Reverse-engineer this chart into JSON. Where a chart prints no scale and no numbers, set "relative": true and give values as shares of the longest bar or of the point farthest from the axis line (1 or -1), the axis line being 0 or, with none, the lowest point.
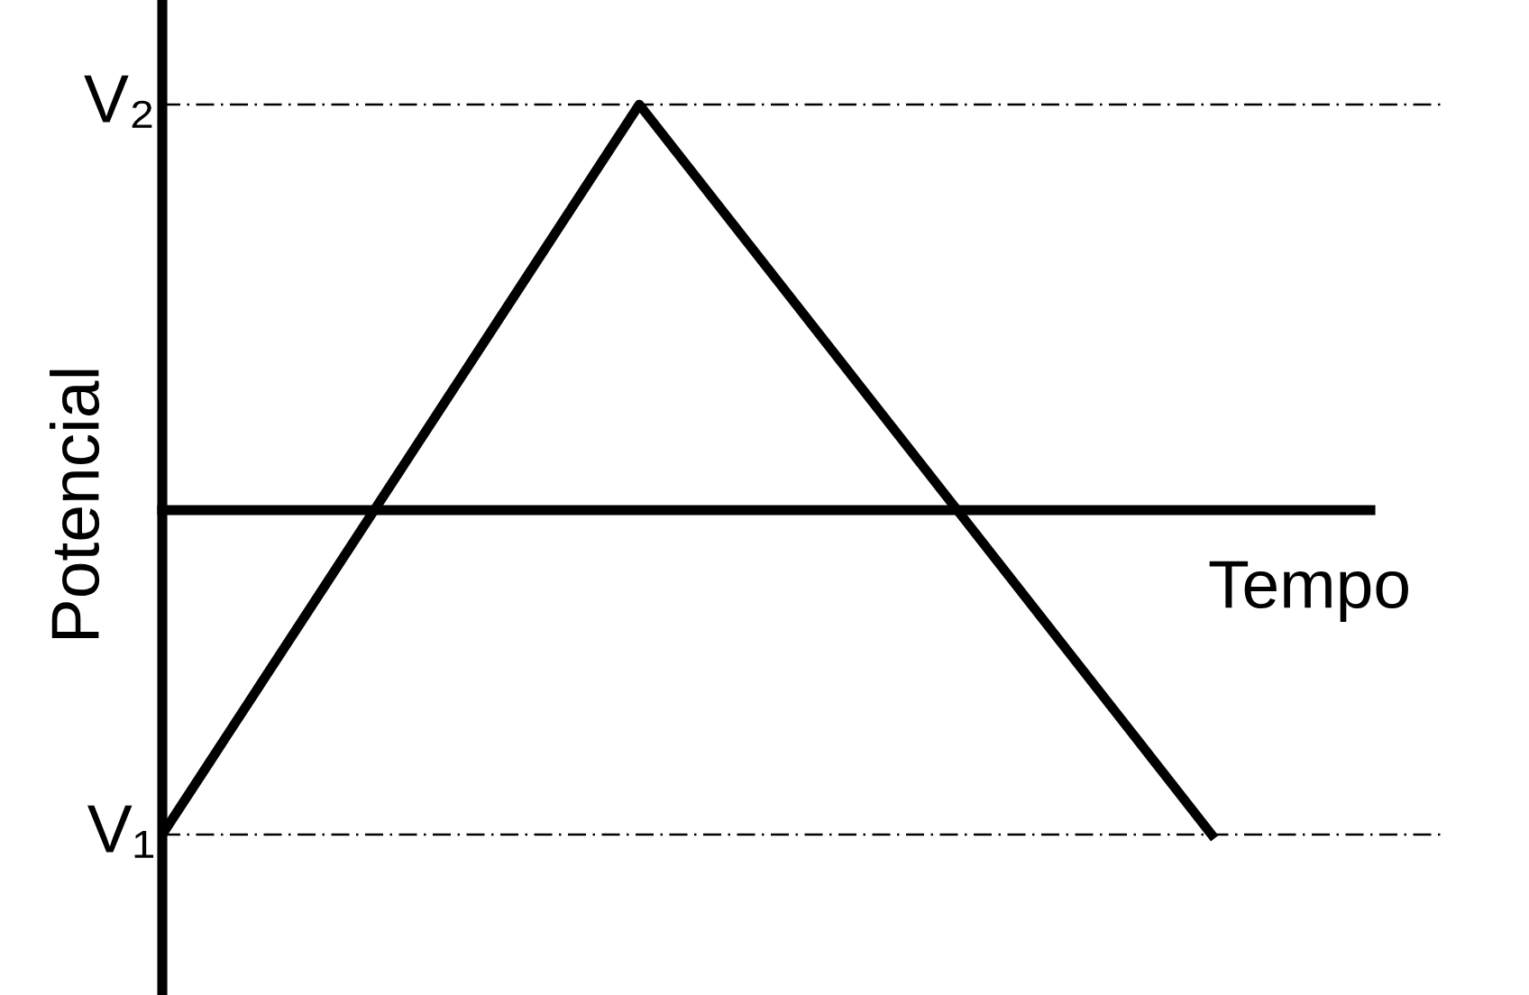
{
  "chart_data": {
    "type": "line",
    "relative": true,
    "xlabel": "Tempo",
    "ylabel": "Potencial",
    "categories": [
      null,
      null,
      null,
      null,
      null,
      null,
      null,
      null,
      null,
      null,
      null,
      null,
      null,
      null,
      null,
      null,
      null,
      null,
      null,
      null,
      null,
      null,
      null
    ],
    "series": [
      {
        "color": "#000000",
        "values": [
          -0.8,
          -0.62,
          -0.44,
          -0.26,
          -0.08,
          0.1,
          0.28,
          0.46,
          0.64,
          0.82,
          1,
          0.85,
          0.7,
          0.55,
          0.4,
          0.25,
          0.1,
          -0.05,
          -0.2,
          -0.35,
          -0.5,
          -0.65,
          -0.8
        ]
      }
    ],
    "ref_lines": [
      {
        "axis": "y",
        "value": 1,
        "label": "V₂",
        "line_style": "dashdot",
        "color": "#000000"
      },
      {
        "axis": "y",
        "value": -0.8,
        "label": "V₁",
        "line_style": "dashdot",
        "color": "#000000"
      }
    ],
    "marker": "none",
    "line_style": "solid",
    "legend": false
  }
}
